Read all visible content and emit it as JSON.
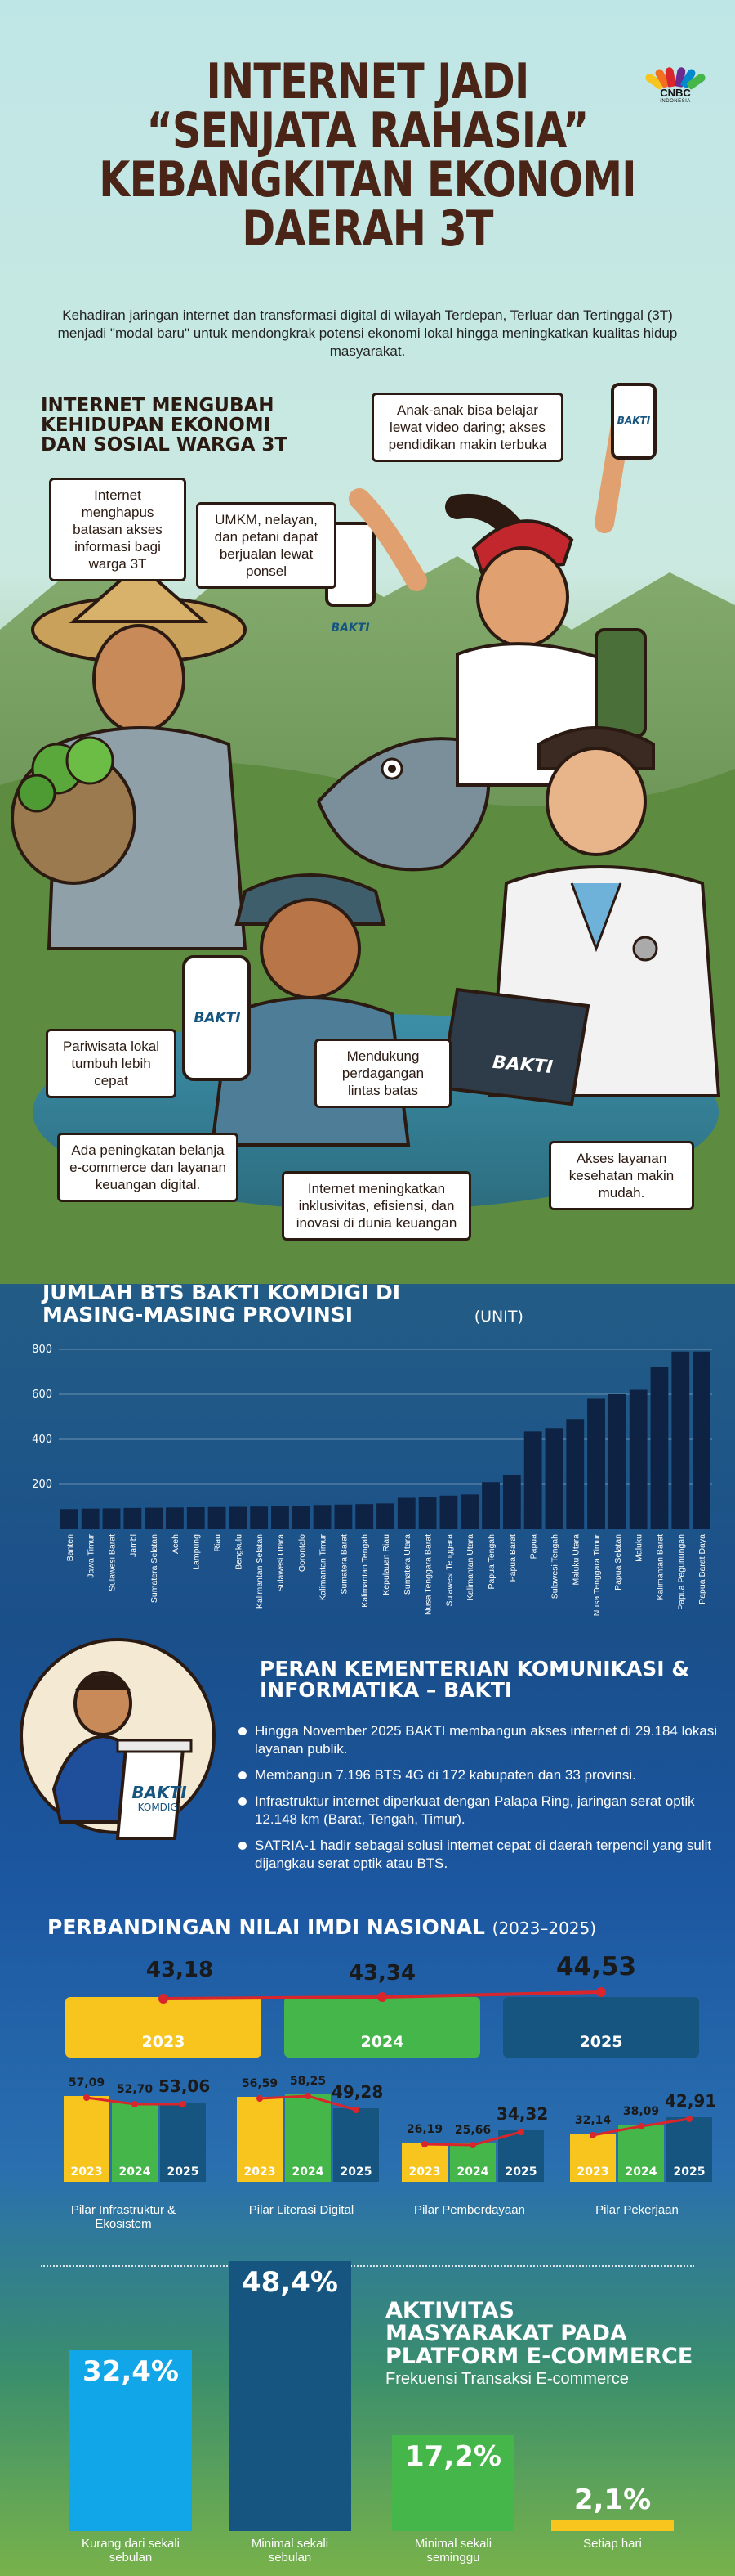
{
  "title": {
    "line1": "INTERNET JADI",
    "line2": "“SENJATA RAHASIA”",
    "line3": "KEBANGKITAN EKONOMI",
    "line4": "DAERAH 3T"
  },
  "logo": {
    "brand": "CNBC",
    "sub": "INDONESIA",
    "icon": "peacock-icon"
  },
  "intro": "Kehadiran jaringan internet dan transformasi digital di wilayah Terdepan, Terluar dan Tertinggal (3T) menjadi \"modal baru\" untuk mendongkrak potensi ekonomi lokal hingga meningkatkan kualitas hidup masyarakat.",
  "section1": {
    "title_line1": "INTERNET MENGUBAH",
    "title_line2": "KEHIDUPAN EKONOMI",
    "title_line3": "DAN SOSIAL WARGA 3T",
    "bubbles": [
      "Internet menghapus batasan akses informasi bagi warga 3T",
      "UMKM, nelayan, dan petani dapat berjualan lewat ponsel",
      "Anak-anak bisa belajar lewat video daring; akses pendidikan makin terbuka",
      "Pariwisata lokal tumbuh lebih cepat",
      "Mendukung perdagangan lintas batas",
      "Ada peningkatan belanja e-commerce dan layanan keuangan digital.",
      "Internet meningkatkan inklusivitas, efisiensi, dan inovasi di dunia keuangan",
      "Akses layanan kesehatan makin mudah."
    ],
    "phone_label": "BAKTI",
    "laptop_label": "BAKTI"
  },
  "chart_data": {
    "type": "bar",
    "title": "JUMLAH BTS BAKTI KOMDIGI DI MASING-MASING PROVINSI",
    "unit": "(UNIT)",
    "ylim": [
      0,
      800
    ],
    "yticks": [
      "200",
      "400",
      "600",
      "800"
    ],
    "categories": [
      "Banten",
      "Jawa Timur",
      "Sulawesi Barat",
      "Jambi",
      "Sumatera Selatan",
      "Aceh",
      "Lampung",
      "Riau",
      "Bengkulu",
      "Kalimantan Selatan",
      "Sulawesi Utara",
      "Gorontalo",
      "Kalimantan Timur",
      "Sumatera Barat",
      "Kalimantan Tengah",
      "Kepulauan Riau",
      "Sumatera Utara",
      "Nusa Tenggara Barat",
      "Sulawesi Tenggara",
      "Kalimantan Utara",
      "Papua Tengah",
      "Papua Barat",
      "Papua",
      "Sulawesi Tengah",
      "Maluku Utara",
      "Nusa Tenggara Timur",
      "Papua Selatan",
      "Maluku",
      "Kalimantan Barat",
      "Papua Pegunungan",
      "Papua Barat Daya"
    ],
    "values": [
      90,
      92,
      93,
      95,
      96,
      97,
      98,
      99,
      100,
      101,
      103,
      105,
      108,
      110,
      112,
      115,
      140,
      145,
      150,
      155,
      210,
      240,
      435,
      450,
      490,
      580,
      600,
      620,
      720,
      790,
      790
    ],
    "grid": true
  },
  "peran": {
    "title_line1": "PERAN KEMENTERIAN KOMUNIKASI &",
    "title_line2": "INFORMATIKA – BAKTI",
    "items": [
      "Hingga November 2025 BAKTI membangun akses internet di 29.184 lokasi layanan publik.",
      "Membangun 7.196 BTS 4G di 172 kabupaten dan 33 provinsi.",
      "Infrastruktur internet diperkuat dengan Palapa Ring, jaringan serat optik 12.148 km (Barat, Tengah, Timur).",
      "SATRIA-1 hadir sebagai solusi internet cepat di daerah terpencil yang sulit dijangkau serat optik atau BTS."
    ],
    "podium_label1": "BAKTI",
    "podium_label2": "KOMDIGI"
  },
  "imdi": {
    "title": "PERBANDINGAN NILAI IMDI NASIONAL",
    "years_range": "(2023–2025)",
    "national": [
      {
        "year": "2023",
        "value": "43,18"
      },
      {
        "year": "2024",
        "value": "43,34"
      },
      {
        "year": "2025",
        "value": "44,53"
      }
    ],
    "pilar": [
      {
        "label": "Pilar Infrastruktur & Ekosistem",
        "values": [
          "57,09",
          "52,70",
          "53,06"
        ]
      },
      {
        "label": "Pilar Literasi Digital",
        "values": [
          "56,59",
          "58,25",
          "49,28"
        ]
      },
      {
        "label": "Pilar Pemberdayaan",
        "values": [
          "26,19",
          "25,66",
          "34,32"
        ]
      },
      {
        "label": "Pilar Pekerjaan",
        "values": [
          "32,14",
          "38,09",
          "42,91"
        ]
      }
    ],
    "years": [
      "2023",
      "2024",
      "2025"
    ],
    "colors": {
      "y2023": "#f7c51e",
      "y2024": "#45b649",
      "y2025": "#16557f",
      "line": "#d9262c"
    }
  },
  "ecommerce": {
    "title_line1": "AKTIVITAS",
    "title_line2": "MASYARAKAT PADA",
    "title_line3": "PLATFORM E-COMMERCE",
    "subtitle": "Frekuensi Transaksi E-commerce",
    "items": [
      {
        "value": "32,4%",
        "label": "Kurang dari sekali sebulan",
        "color": "#11a6e8"
      },
      {
        "value": "48,4%",
        "label": "Minimal sekali sebulan",
        "color": "#16557f"
      },
      {
        "value": "17,2%",
        "label": "Minimal sekali seminggu",
        "color": "#45b649"
      },
      {
        "value": "2,1%",
        "label": "Setiap hari",
        "color": "#f7c51e"
      }
    ]
  }
}
